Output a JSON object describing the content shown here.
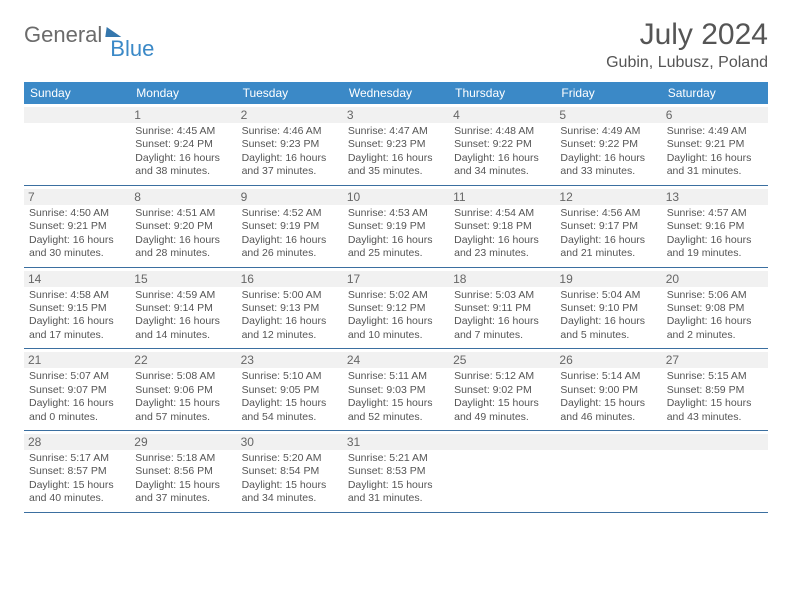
{
  "logo": {
    "part1": "General",
    "part2": "Blue"
  },
  "title": "July 2024",
  "location": "Gubin, Lubusz, Poland",
  "colors": {
    "header_bg": "#3b89c7",
    "header_text": "#ffffff",
    "day_num_bg": "#f1f1f1",
    "row_border": "#3b6fa0",
    "body_text": "#555555",
    "logo_gray": "#6b6b6b",
    "logo_blue": "#3b89c7"
  },
  "typography": {
    "title_fontsize": 30,
    "location_fontsize": 16,
    "dow_fontsize": 12,
    "daynum_fontsize": 12,
    "body_fontsize": 10.5
  },
  "days_of_week": [
    "Sunday",
    "Monday",
    "Tuesday",
    "Wednesday",
    "Thursday",
    "Friday",
    "Saturday"
  ],
  "weeks": [
    [
      {
        "n": "",
        "sunrise": "",
        "sunset": "",
        "daylight": ""
      },
      {
        "n": "1",
        "sunrise": "Sunrise: 4:45 AM",
        "sunset": "Sunset: 9:24 PM",
        "daylight": "Daylight: 16 hours and 38 minutes."
      },
      {
        "n": "2",
        "sunrise": "Sunrise: 4:46 AM",
        "sunset": "Sunset: 9:23 PM",
        "daylight": "Daylight: 16 hours and 37 minutes."
      },
      {
        "n": "3",
        "sunrise": "Sunrise: 4:47 AM",
        "sunset": "Sunset: 9:23 PM",
        "daylight": "Daylight: 16 hours and 35 minutes."
      },
      {
        "n": "4",
        "sunrise": "Sunrise: 4:48 AM",
        "sunset": "Sunset: 9:22 PM",
        "daylight": "Daylight: 16 hours and 34 minutes."
      },
      {
        "n": "5",
        "sunrise": "Sunrise: 4:49 AM",
        "sunset": "Sunset: 9:22 PM",
        "daylight": "Daylight: 16 hours and 33 minutes."
      },
      {
        "n": "6",
        "sunrise": "Sunrise: 4:49 AM",
        "sunset": "Sunset: 9:21 PM",
        "daylight": "Daylight: 16 hours and 31 minutes."
      }
    ],
    [
      {
        "n": "7",
        "sunrise": "Sunrise: 4:50 AM",
        "sunset": "Sunset: 9:21 PM",
        "daylight": "Daylight: 16 hours and 30 minutes."
      },
      {
        "n": "8",
        "sunrise": "Sunrise: 4:51 AM",
        "sunset": "Sunset: 9:20 PM",
        "daylight": "Daylight: 16 hours and 28 minutes."
      },
      {
        "n": "9",
        "sunrise": "Sunrise: 4:52 AM",
        "sunset": "Sunset: 9:19 PM",
        "daylight": "Daylight: 16 hours and 26 minutes."
      },
      {
        "n": "10",
        "sunrise": "Sunrise: 4:53 AM",
        "sunset": "Sunset: 9:19 PM",
        "daylight": "Daylight: 16 hours and 25 minutes."
      },
      {
        "n": "11",
        "sunrise": "Sunrise: 4:54 AM",
        "sunset": "Sunset: 9:18 PM",
        "daylight": "Daylight: 16 hours and 23 minutes."
      },
      {
        "n": "12",
        "sunrise": "Sunrise: 4:56 AM",
        "sunset": "Sunset: 9:17 PM",
        "daylight": "Daylight: 16 hours and 21 minutes."
      },
      {
        "n": "13",
        "sunrise": "Sunrise: 4:57 AM",
        "sunset": "Sunset: 9:16 PM",
        "daylight": "Daylight: 16 hours and 19 minutes."
      }
    ],
    [
      {
        "n": "14",
        "sunrise": "Sunrise: 4:58 AM",
        "sunset": "Sunset: 9:15 PM",
        "daylight": "Daylight: 16 hours and 17 minutes."
      },
      {
        "n": "15",
        "sunrise": "Sunrise: 4:59 AM",
        "sunset": "Sunset: 9:14 PM",
        "daylight": "Daylight: 16 hours and 14 minutes."
      },
      {
        "n": "16",
        "sunrise": "Sunrise: 5:00 AM",
        "sunset": "Sunset: 9:13 PM",
        "daylight": "Daylight: 16 hours and 12 minutes."
      },
      {
        "n": "17",
        "sunrise": "Sunrise: 5:02 AM",
        "sunset": "Sunset: 9:12 PM",
        "daylight": "Daylight: 16 hours and 10 minutes."
      },
      {
        "n": "18",
        "sunrise": "Sunrise: 5:03 AM",
        "sunset": "Sunset: 9:11 PM",
        "daylight": "Daylight: 16 hours and 7 minutes."
      },
      {
        "n": "19",
        "sunrise": "Sunrise: 5:04 AM",
        "sunset": "Sunset: 9:10 PM",
        "daylight": "Daylight: 16 hours and 5 minutes."
      },
      {
        "n": "20",
        "sunrise": "Sunrise: 5:06 AM",
        "sunset": "Sunset: 9:08 PM",
        "daylight": "Daylight: 16 hours and 2 minutes."
      }
    ],
    [
      {
        "n": "21",
        "sunrise": "Sunrise: 5:07 AM",
        "sunset": "Sunset: 9:07 PM",
        "daylight": "Daylight: 16 hours and 0 minutes."
      },
      {
        "n": "22",
        "sunrise": "Sunrise: 5:08 AM",
        "sunset": "Sunset: 9:06 PM",
        "daylight": "Daylight: 15 hours and 57 minutes."
      },
      {
        "n": "23",
        "sunrise": "Sunrise: 5:10 AM",
        "sunset": "Sunset: 9:05 PM",
        "daylight": "Daylight: 15 hours and 54 minutes."
      },
      {
        "n": "24",
        "sunrise": "Sunrise: 5:11 AM",
        "sunset": "Sunset: 9:03 PM",
        "daylight": "Daylight: 15 hours and 52 minutes."
      },
      {
        "n": "25",
        "sunrise": "Sunrise: 5:12 AM",
        "sunset": "Sunset: 9:02 PM",
        "daylight": "Daylight: 15 hours and 49 minutes."
      },
      {
        "n": "26",
        "sunrise": "Sunrise: 5:14 AM",
        "sunset": "Sunset: 9:00 PM",
        "daylight": "Daylight: 15 hours and 46 minutes."
      },
      {
        "n": "27",
        "sunrise": "Sunrise: 5:15 AM",
        "sunset": "Sunset: 8:59 PM",
        "daylight": "Daylight: 15 hours and 43 minutes."
      }
    ],
    [
      {
        "n": "28",
        "sunrise": "Sunrise: 5:17 AM",
        "sunset": "Sunset: 8:57 PM",
        "daylight": "Daylight: 15 hours and 40 minutes."
      },
      {
        "n": "29",
        "sunrise": "Sunrise: 5:18 AM",
        "sunset": "Sunset: 8:56 PM",
        "daylight": "Daylight: 15 hours and 37 minutes."
      },
      {
        "n": "30",
        "sunrise": "Sunrise: 5:20 AM",
        "sunset": "Sunset: 8:54 PM",
        "daylight": "Daylight: 15 hours and 34 minutes."
      },
      {
        "n": "31",
        "sunrise": "Sunrise: 5:21 AM",
        "sunset": "Sunset: 8:53 PM",
        "daylight": "Daylight: 15 hours and 31 minutes."
      },
      {
        "n": "",
        "sunrise": "",
        "sunset": "",
        "daylight": ""
      },
      {
        "n": "",
        "sunrise": "",
        "sunset": "",
        "daylight": ""
      },
      {
        "n": "",
        "sunrise": "",
        "sunset": "",
        "daylight": ""
      }
    ]
  ]
}
